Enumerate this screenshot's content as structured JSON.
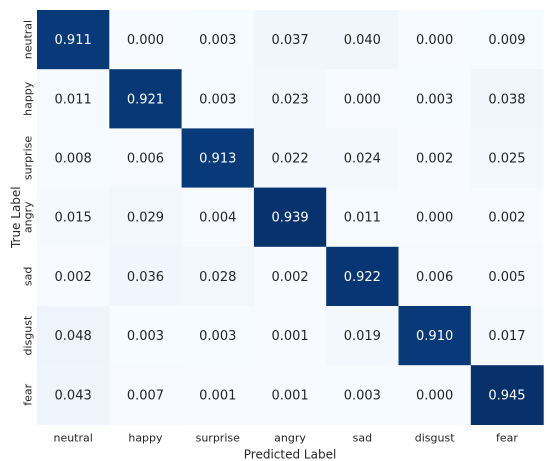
{
  "chart_data": {
    "type": "heatmap",
    "title": "",
    "xlabel": "Predicted Label",
    "ylabel": "True Label",
    "x_categories": [
      "neutral",
      "happy",
      "surprise",
      "angry",
      "sad",
      "disgust",
      "fear"
    ],
    "y_categories": [
      "neutral",
      "happy",
      "surprise",
      "angry",
      "sad",
      "disgust",
      "fear"
    ],
    "values": [
      [
        0.911,
        0.0,
        0.003,
        0.037,
        0.04,
        0.0,
        0.009
      ],
      [
        0.011,
        0.921,
        0.003,
        0.023,
        0.0,
        0.003,
        0.038
      ],
      [
        0.008,
        0.006,
        0.913,
        0.022,
        0.024,
        0.002,
        0.025
      ],
      [
        0.015,
        0.029,
        0.004,
        0.939,
        0.011,
        0.0,
        0.002
      ],
      [
        0.002,
        0.036,
        0.028,
        0.002,
        0.922,
        0.006,
        0.005
      ],
      [
        0.048,
        0.003,
        0.003,
        0.001,
        0.019,
        0.91,
        0.017
      ],
      [
        0.043,
        0.007,
        0.001,
        0.001,
        0.003,
        0.0,
        0.945
      ]
    ],
    "value_format": "3 decimals",
    "colormap": "Blues",
    "color_low": "#f7fbff",
    "color_high": "#08306b",
    "text_color_dark": "#262626",
    "text_color_light": "#ffffff",
    "colorbar": false,
    "grid": false
  }
}
